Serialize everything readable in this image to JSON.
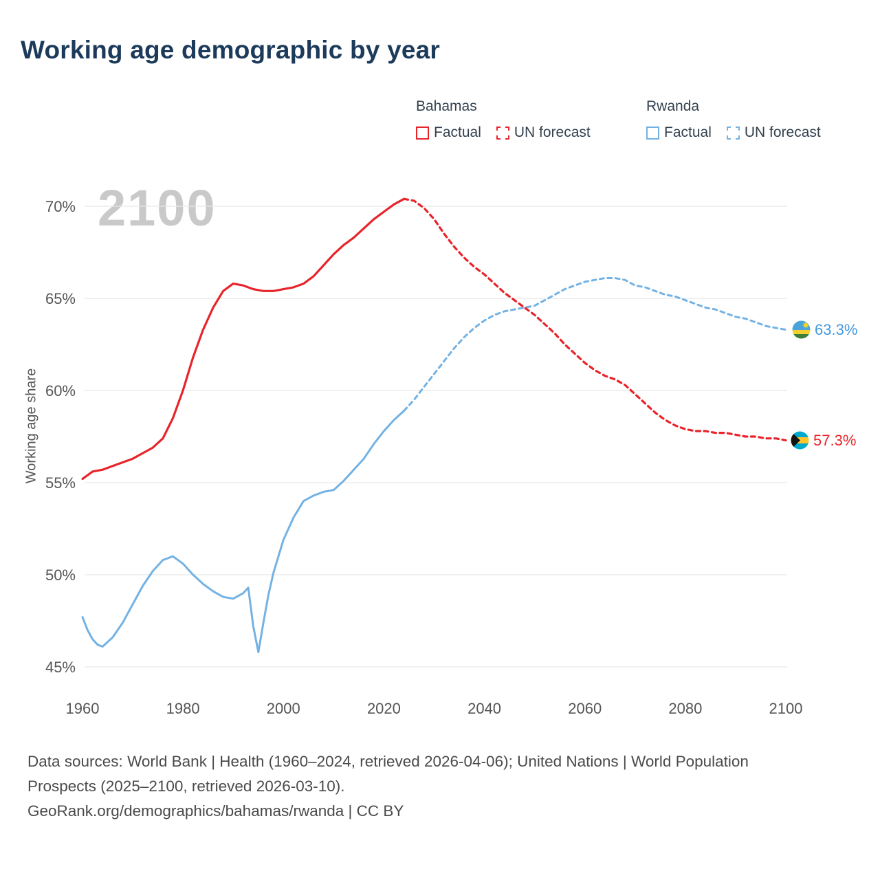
{
  "page": {
    "title": "Working age demographic by year"
  },
  "legend": {
    "groups": [
      {
        "name": "Bahamas",
        "items": [
          {
            "label": "Factual",
            "style": "solid",
            "color": "#e8242b"
          },
          {
            "label": "UN forecast",
            "style": "dashed",
            "color": "#e8242b"
          }
        ]
      },
      {
        "name": "Rwanda",
        "items": [
          {
            "label": "Factual",
            "style": "solid",
            "color": "#74b2e3"
          },
          {
            "label": "UN forecast",
            "style": "dashed",
            "color": "#74b2e3"
          }
        ]
      }
    ]
  },
  "footer": {
    "sources": "Data sources: World Bank | Health (1960–2024, retrieved 2026-04-06); United Nations | World Population Prospects (2025–2100, retrieved 2026-03-10).",
    "attribution": "GeoRank.org/demographics/bahamas/rwanda | CC BY"
  },
  "chart_data": {
    "type": "line",
    "title": "Working age demographic by year",
    "ylabel": "Working age share",
    "watermark": "2100",
    "grid": true,
    "legend_position": "top-right",
    "xlim": [
      1960,
      2100
    ],
    "ylim": [
      45,
      70
    ],
    "y_ticks": [
      {
        "value": 45,
        "label": "45%"
      },
      {
        "value": 50,
        "label": "50%"
      },
      {
        "value": 55,
        "label": "55%"
      },
      {
        "value": 60,
        "label": "60%"
      },
      {
        "value": 65,
        "label": "65%"
      },
      {
        "value": 70,
        "label": "70%"
      }
    ],
    "x_ticks": [
      {
        "value": 1960,
        "label": "1960"
      },
      {
        "value": 1980,
        "label": "1980"
      },
      {
        "value": 2000,
        "label": "2000"
      },
      {
        "value": 2020,
        "label": "2020"
      },
      {
        "value": 2040,
        "label": "2040"
      },
      {
        "value": 2060,
        "label": "2060"
      },
      {
        "value": 2080,
        "label": "2080"
      },
      {
        "value": 2100,
        "label": "2100"
      }
    ],
    "series": [
      {
        "name": "Bahamas Factual",
        "color": "#e8242b",
        "style": "solid",
        "width": 3.2,
        "points": [
          [
            1960,
            55.2
          ],
          [
            1962,
            55.6
          ],
          [
            1964,
            55.7
          ],
          [
            1966,
            55.9
          ],
          [
            1968,
            56.1
          ],
          [
            1970,
            56.3
          ],
          [
            1972,
            56.6
          ],
          [
            1974,
            56.9
          ],
          [
            1976,
            57.4
          ],
          [
            1978,
            58.5
          ],
          [
            1980,
            60.0
          ],
          [
            1982,
            61.8
          ],
          [
            1984,
            63.3
          ],
          [
            1986,
            64.5
          ],
          [
            1988,
            65.4
          ],
          [
            1990,
            65.8
          ],
          [
            1992,
            65.7
          ],
          [
            1994,
            65.5
          ],
          [
            1996,
            65.4
          ],
          [
            1998,
            65.4
          ],
          [
            2000,
            65.5
          ],
          [
            2002,
            65.6
          ],
          [
            2004,
            65.8
          ],
          [
            2006,
            66.2
          ],
          [
            2008,
            66.8
          ],
          [
            2010,
            67.4
          ],
          [
            2012,
            67.9
          ],
          [
            2014,
            68.3
          ],
          [
            2016,
            68.8
          ],
          [
            2018,
            69.3
          ],
          [
            2020,
            69.7
          ],
          [
            2022,
            70.1
          ],
          [
            2024,
            70.4
          ]
        ]
      },
      {
        "name": "Bahamas UN forecast",
        "color": "#e8242b",
        "style": "dashed",
        "width": 3.2,
        "points": [
          [
            2024,
            70.4
          ],
          [
            2026,
            70.3
          ],
          [
            2028,
            69.9
          ],
          [
            2030,
            69.3
          ],
          [
            2032,
            68.5
          ],
          [
            2034,
            67.8
          ],
          [
            2036,
            67.2
          ],
          [
            2038,
            66.7
          ],
          [
            2040,
            66.3
          ],
          [
            2042,
            65.8
          ],
          [
            2044,
            65.3
          ],
          [
            2046,
            64.9
          ],
          [
            2048,
            64.5
          ],
          [
            2050,
            64.1
          ],
          [
            2052,
            63.6
          ],
          [
            2054,
            63.1
          ],
          [
            2056,
            62.5
          ],
          [
            2058,
            62.0
          ],
          [
            2060,
            61.5
          ],
          [
            2062,
            61.1
          ],
          [
            2064,
            60.8
          ],
          [
            2066,
            60.6
          ],
          [
            2068,
            60.3
          ],
          [
            2070,
            59.8
          ],
          [
            2072,
            59.3
          ],
          [
            2074,
            58.8
          ],
          [
            2076,
            58.4
          ],
          [
            2078,
            58.1
          ],
          [
            2080,
            57.9
          ],
          [
            2082,
            57.8
          ],
          [
            2084,
            57.8
          ],
          [
            2086,
            57.7
          ],
          [
            2088,
            57.7
          ],
          [
            2090,
            57.6
          ],
          [
            2092,
            57.5
          ],
          [
            2094,
            57.5
          ],
          [
            2096,
            57.4
          ],
          [
            2098,
            57.4
          ],
          [
            2100,
            57.3
          ]
        ]
      },
      {
        "name": "Rwanda Factual",
        "color": "#74b2e3",
        "style": "solid",
        "width": 3,
        "points": [
          [
            1960,
            47.7
          ],
          [
            1961,
            47.0
          ],
          [
            1962,
            46.5
          ],
          [
            1963,
            46.2
          ],
          [
            1964,
            46.1
          ],
          [
            1966,
            46.6
          ],
          [
            1968,
            47.4
          ],
          [
            1970,
            48.4
          ],
          [
            1972,
            49.4
          ],
          [
            1974,
            50.2
          ],
          [
            1976,
            50.8
          ],
          [
            1978,
            51.0
          ],
          [
            1980,
            50.6
          ],
          [
            1982,
            50.0
          ],
          [
            1984,
            49.5
          ],
          [
            1986,
            49.1
          ],
          [
            1988,
            48.8
          ],
          [
            1990,
            48.7
          ],
          [
            1992,
            49.0
          ],
          [
            1993,
            49.3
          ],
          [
            1994,
            47.2
          ],
          [
            1995,
            45.8
          ],
          [
            1996,
            47.4
          ],
          [
            1997,
            48.9
          ],
          [
            1998,
            50.1
          ],
          [
            2000,
            51.9
          ],
          [
            2002,
            53.1
          ],
          [
            2004,
            54.0
          ],
          [
            2006,
            54.3
          ],
          [
            2008,
            54.5
          ],
          [
            2010,
            54.6
          ],
          [
            2012,
            55.1
          ],
          [
            2014,
            55.7
          ],
          [
            2016,
            56.3
          ],
          [
            2018,
            57.1
          ],
          [
            2020,
            57.8
          ],
          [
            2022,
            58.4
          ],
          [
            2024,
            58.9
          ]
        ]
      },
      {
        "name": "Rwanda UN forecast",
        "color": "#74b2e3",
        "style": "dashed",
        "width": 3,
        "points": [
          [
            2024,
            58.9
          ],
          [
            2026,
            59.5
          ],
          [
            2028,
            60.2
          ],
          [
            2030,
            60.9
          ],
          [
            2032,
            61.6
          ],
          [
            2034,
            62.3
          ],
          [
            2036,
            62.9
          ],
          [
            2038,
            63.4
          ],
          [
            2040,
            63.8
          ],
          [
            2042,
            64.1
          ],
          [
            2044,
            64.3
          ],
          [
            2046,
            64.4
          ],
          [
            2048,
            64.5
          ],
          [
            2050,
            64.6
          ],
          [
            2052,
            64.9
          ],
          [
            2054,
            65.2
          ],
          [
            2056,
            65.5
          ],
          [
            2058,
            65.7
          ],
          [
            2060,
            65.9
          ],
          [
            2062,
            66.0
          ],
          [
            2064,
            66.1
          ],
          [
            2066,
            66.1
          ],
          [
            2068,
            66.0
          ],
          [
            2070,
            65.7
          ],
          [
            2072,
            65.6
          ],
          [
            2074,
            65.4
          ],
          [
            2076,
            65.2
          ],
          [
            2078,
            65.1
          ],
          [
            2080,
            64.9
          ],
          [
            2082,
            64.7
          ],
          [
            2084,
            64.5
          ],
          [
            2086,
            64.4
          ],
          [
            2088,
            64.2
          ],
          [
            2090,
            64.0
          ],
          [
            2092,
            63.9
          ],
          [
            2094,
            63.7
          ],
          [
            2096,
            63.5
          ],
          [
            2098,
            63.4
          ],
          [
            2100,
            63.3
          ]
        ]
      }
    ],
    "end_labels": [
      {
        "series": "Rwanda",
        "value": "63.3%",
        "color": "#4599dd",
        "flag": "rwanda-flag"
      },
      {
        "series": "Bahamas",
        "value": "57.3%",
        "color": "#e8242b",
        "flag": "bahamas-flag"
      }
    ],
    "colors": {
      "grid": "#e8e8e8",
      "axis_text": "#555555",
      "title": "#1c3a5a",
      "watermark": "#c9c9c9"
    }
  }
}
